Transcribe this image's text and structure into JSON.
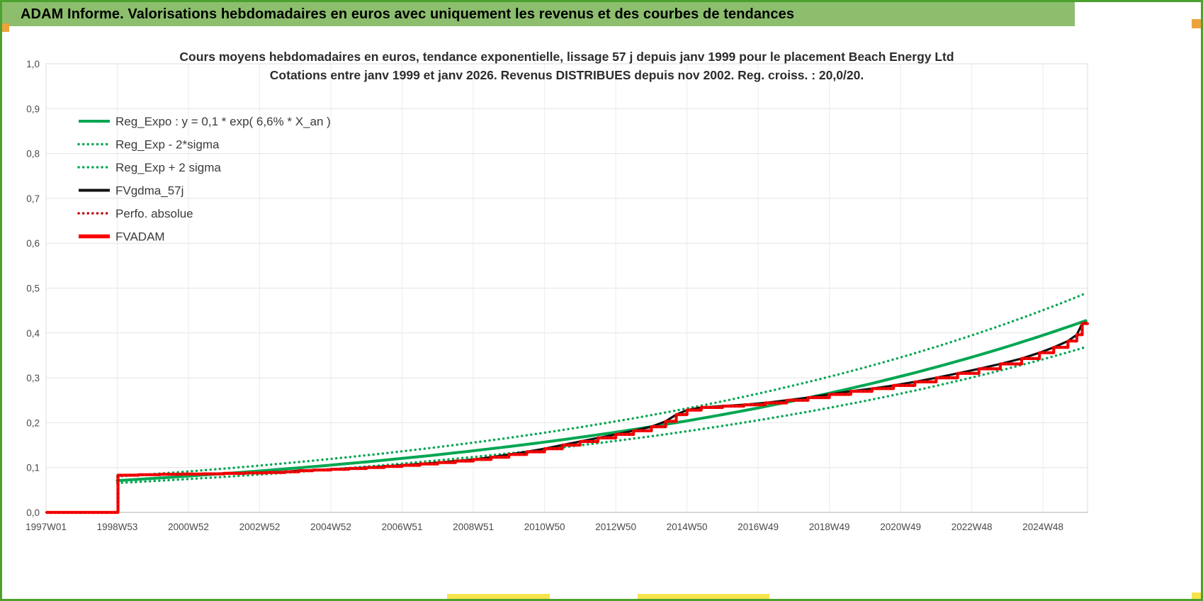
{
  "banner": {
    "title": "ADAM Informe. Valorisations hebdomadaires en euros avec uniquement les revenus et des courbes de tendances"
  },
  "colors": {
    "banner": "#8CBE6D",
    "border": "#4CA12F",
    "orange": "#EDA33C",
    "yellow": "#F7E34B"
  },
  "chart_data": {
    "type": "line",
    "title_line1": "Cours moyens hebdomadaires en euros, tendance exponentielle, lissage 57 j depuis janv 1999 pour le placement Beach Energy Ltd",
    "title_line2": "Cotations entre janv 1999 et janv 2026. Revenus DISTRIBUES depuis nov 2002. Reg. croiss. : 20,0/20.",
    "x_range": [
      1997.0,
      2026.25
    ],
    "y_range": [
      0.0,
      1.0
    ],
    "grid": true,
    "legend_position": "upper-left-inside",
    "colors": {
      "green": "#00A651",
      "red": "#FF0000",
      "dark_red": "#C00000",
      "black": "#111111",
      "grid_h": "#e4e4e4",
      "grid_v": "#ececec",
      "frame": "#dcdcdc",
      "axis": "#bfbfbf",
      "axis_text": "#4a4a4a"
    },
    "y_ticks": [
      {
        "label": "0,0",
        "value": 0.0
      },
      {
        "label": "0,1",
        "value": 0.1
      },
      {
        "label": "0,2",
        "value": 0.2
      },
      {
        "label": "0,3",
        "value": 0.3
      },
      {
        "label": "0,4",
        "value": 0.4
      },
      {
        "label": "0,5",
        "value": 0.5
      },
      {
        "label": "0,6",
        "value": 0.6
      },
      {
        "label": "0,7",
        "value": 0.7
      },
      {
        "label": "0,8",
        "value": 0.8
      },
      {
        "label": "0,9",
        "value": 0.9
      },
      {
        "label": "1,0",
        "value": 1.0
      }
    ],
    "x_ticks": [
      {
        "label": "1997W01",
        "year": 1997
      },
      {
        "label": "1998W53",
        "year": 1999
      },
      {
        "label": "2000W52",
        "year": 2001
      },
      {
        "label": "2002W52",
        "year": 2003
      },
      {
        "label": "2004W52",
        "year": 2005
      },
      {
        "label": "2006W51",
        "year": 2007
      },
      {
        "label": "2008W51",
        "year": 2009
      },
      {
        "label": "2010W50",
        "year": 2011
      },
      {
        "label": "2012W50",
        "year": 2013
      },
      {
        "label": "2014W50",
        "year": 2015
      },
      {
        "label": "2016W49",
        "year": 2017
      },
      {
        "label": "2018W49",
        "year": 2019
      },
      {
        "label": "2020W49",
        "year": 2021
      },
      {
        "label": "2022W48",
        "year": 2023
      },
      {
        "label": "2024W48",
        "year": 2025
      }
    ],
    "legend": [
      {
        "label": "Reg_Expo : y = 0,1 * exp( 6,6% *  X_an )",
        "style": "solid",
        "color": "green"
      },
      {
        "label": "Reg_Exp - 2*sigma",
        "style": "dotted",
        "color": "green"
      },
      {
        "label": "Reg_Exp + 2 sigma",
        "style": "dotted",
        "color": "green"
      },
      {
        "label": "FVgdma_57j",
        "style": "solid",
        "color": "black"
      },
      {
        "label": "Perfo. absolue",
        "style": "dotted",
        "color": "dark_red"
      },
      {
        "label": "FVADAM",
        "style": "solid-thick",
        "color": "red"
      }
    ],
    "series": {
      "reg_expo": {
        "kind": "exp",
        "y0": 0.071,
        "rate": 0.066,
        "t0": 1999.0,
        "t_start": 1999.0,
        "t_end": 2026.25
      },
      "reg_upper": {
        "kind": "exp",
        "y0": 0.08,
        "rate": 0.0665,
        "t0": 1999.0,
        "t_start": 1999.0,
        "t_end": 2026.25
      },
      "reg_lower": {
        "kind": "exp",
        "y0": 0.0655,
        "rate": 0.0635,
        "t0": 1999.0,
        "t_start": 1999.0,
        "t_end": 2026.25
      },
      "fvgdma_57j": {
        "kind": "smoothed_from_steps"
      },
      "perfo_absolue": {
        "kind": "dotted_overlay_of_steps"
      },
      "fvadam_steps": [
        [
          1997.0,
          0.0
        ],
        [
          1999.02,
          0.0
        ],
        [
          1999.02,
          0.083
        ],
        [
          1999.6,
          0.084
        ],
        [
          2000.2,
          0.085
        ],
        [
          2000.8,
          0.0855
        ],
        [
          2001.4,
          0.086
        ],
        [
          2002.0,
          0.087
        ],
        [
          2002.6,
          0.088
        ],
        [
          2003.2,
          0.089
        ],
        [
          2003.7,
          0.0905
        ],
        [
          2004.1,
          0.093
        ],
        [
          2004.5,
          0.0945
        ],
        [
          2005.0,
          0.096
        ],
        [
          2005.5,
          0.098
        ],
        [
          2006.0,
          0.1
        ],
        [
          2006.5,
          0.1025
        ],
        [
          2007.0,
          0.105
        ],
        [
          2007.5,
          0.108
        ],
        [
          2008.0,
          0.111
        ],
        [
          2008.5,
          0.1145
        ],
        [
          2009.0,
          0.118
        ],
        [
          2009.5,
          0.123
        ],
        [
          2010.0,
          0.129
        ],
        [
          2010.5,
          0.135
        ],
        [
          2011.0,
          0.142
        ],
        [
          2011.5,
          0.15
        ],
        [
          2012.0,
          0.158
        ],
        [
          2012.5,
          0.166
        ],
        [
          2013.0,
          0.174
        ],
        [
          2013.5,
          0.182
        ],
        [
          2014.0,
          0.191
        ],
        [
          2014.4,
          0.203
        ],
        [
          2014.7,
          0.218
        ],
        [
          2015.0,
          0.228
        ],
        [
          2015.4,
          0.234
        ],
        [
          2016.0,
          0.237
        ],
        [
          2016.6,
          0.24
        ],
        [
          2017.2,
          0.244
        ],
        [
          2017.8,
          0.25
        ],
        [
          2018.4,
          0.256
        ],
        [
          2019.0,
          0.263
        ],
        [
          2019.6,
          0.27
        ],
        [
          2020.2,
          0.276
        ],
        [
          2020.8,
          0.283
        ],
        [
          2021.4,
          0.291
        ],
        [
          2022.0,
          0.3
        ],
        [
          2022.6,
          0.31
        ],
        [
          2023.2,
          0.32
        ],
        [
          2023.8,
          0.331
        ],
        [
          2024.4,
          0.343
        ],
        [
          2024.9,
          0.356
        ],
        [
          2025.3,
          0.368
        ],
        [
          2025.7,
          0.382
        ],
        [
          2025.95,
          0.396
        ],
        [
          2026.1,
          0.421
        ],
        [
          2026.25,
          0.423
        ]
      ]
    }
  }
}
